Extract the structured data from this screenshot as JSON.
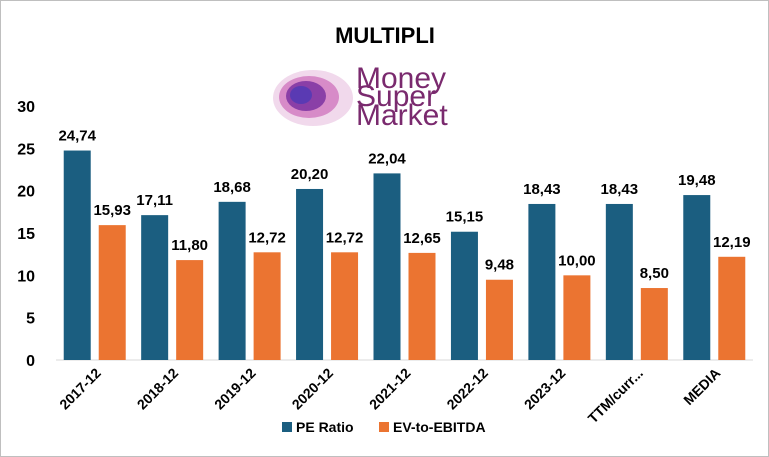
{
  "logo": {
    "line1": "Money",
    "line2": "Super",
    "line3": "Market"
  },
  "colors": {
    "pe": "#1b5e80",
    "ev": "#eb7431",
    "logo_text": "#7a2a6e"
  },
  "chart_data": {
    "type": "bar",
    "title": "MULTIPLI",
    "xlabel": "",
    "ylabel": "",
    "ylim": [
      0,
      30
    ],
    "yticks": [
      0,
      5,
      10,
      15,
      20,
      25,
      30
    ],
    "grid": false,
    "legend_position": "bottom",
    "categories": [
      "2017-12",
      "2018-12",
      "2019-12",
      "2020-12",
      "2021-12",
      "2022-12",
      "2023-12",
      "TTM/curr...",
      "MEDIA"
    ],
    "series": [
      {
        "name": "PE Ratio",
        "values": [
          24.74,
          17.11,
          18.68,
          20.2,
          22.04,
          15.15,
          18.43,
          18.43,
          19.48
        ],
        "labels": [
          "24,74",
          "17,11",
          "18,68",
          "20,20",
          "22,04",
          "15,15",
          "18,43",
          "18,43",
          "19,48"
        ]
      },
      {
        "name": "EV-to-EBITDA",
        "values": [
          15.93,
          11.8,
          12.72,
          12.72,
          12.65,
          9.48,
          10.0,
          8.5,
          12.19
        ],
        "labels": [
          "15,93",
          "11,80",
          "12,72",
          "12,72",
          "12,65",
          "9,48",
          "10,00",
          "8,50",
          "12,19"
        ]
      }
    ]
  }
}
